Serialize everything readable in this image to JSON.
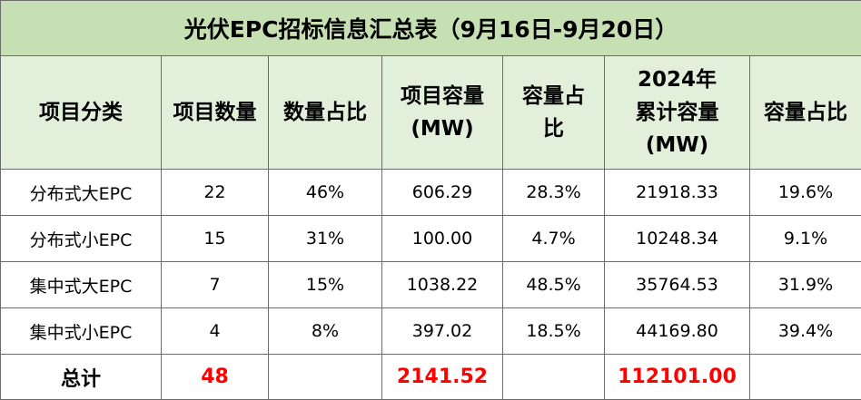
{
  "table": {
    "title": "光伏EPC招标信息汇总表（9月16日-9月20日）",
    "header": [
      [
        "项目分类"
      ],
      [
        "项目数量"
      ],
      [
        "数量占比"
      ],
      [
        "项目容量",
        "(MW)"
      ],
      [
        "容量占",
        "比"
      ],
      [
        "2024年",
        "累计容量",
        "(MW)"
      ],
      [
        "容量占比"
      ]
    ],
    "rows": [
      [
        "分布式大EPC",
        "22",
        "46%",
        "606.29",
        "28.3%",
        "21918.33",
        "19.6%"
      ],
      [
        "分布式小EPC",
        "15",
        "31%",
        "100.00",
        "4.7%",
        "10248.34",
        "9.1%"
      ],
      [
        "集中式大EPC",
        "7",
        "15%",
        "1038.22",
        "48.5%",
        "35764.53",
        "31.9%"
      ],
      [
        "集中式小EPC",
        "4",
        "8%",
        "397.02",
        "18.5%",
        "44169.80",
        "39.4%"
      ]
    ],
    "total": {
      "label": "总计",
      "count": "48",
      "capacity": "2141.52",
      "cumulative": "112101.00"
    }
  }
}
